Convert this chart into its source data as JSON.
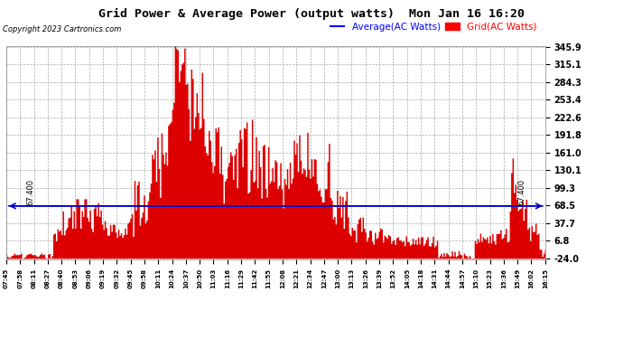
{
  "title": "Grid Power & Average Power (output watts)  Mon Jan 16 16:20",
  "copyright": "Copyright 2023 Cartronics.com",
  "legend_average": "Average(AC Watts)",
  "legend_grid": "Grid(AC Watts)",
  "average_value": 67.4,
  "yticks": [
    345.9,
    315.1,
    284.3,
    253.4,
    222.6,
    191.8,
    161.0,
    130.1,
    99.3,
    68.5,
    37.7,
    6.8,
    -24.0
  ],
  "ymin": -24.0,
  "ymax": 345.9,
  "background_color": "#ffffff",
  "plot_bg_color": "#ffffff",
  "grid_color": "#aaaaaa",
  "bar_color": "#dd0000",
  "avg_line_color": "#0000cc",
  "title_color": "#000000",
  "copyright_color": "#000000",
  "legend_avg_color": "#0000ff",
  "legend_grid_color": "#ff0000",
  "x_labels": [
    "07:45",
    "07:58",
    "08:11",
    "08:27",
    "08:40",
    "08:53",
    "09:06",
    "09:19",
    "09:32",
    "09:45",
    "09:58",
    "10:11",
    "10:24",
    "10:37",
    "10:50",
    "11:03",
    "11:16",
    "11:29",
    "11:42",
    "11:55",
    "12:08",
    "12:21",
    "12:34",
    "12:47",
    "13:00",
    "13:13",
    "13:26",
    "13:39",
    "13:52",
    "14:05",
    "14:18",
    "14:31",
    "14:44",
    "14:57",
    "15:10",
    "15:23",
    "15:36",
    "15:49",
    "16:02",
    "16:15"
  ]
}
